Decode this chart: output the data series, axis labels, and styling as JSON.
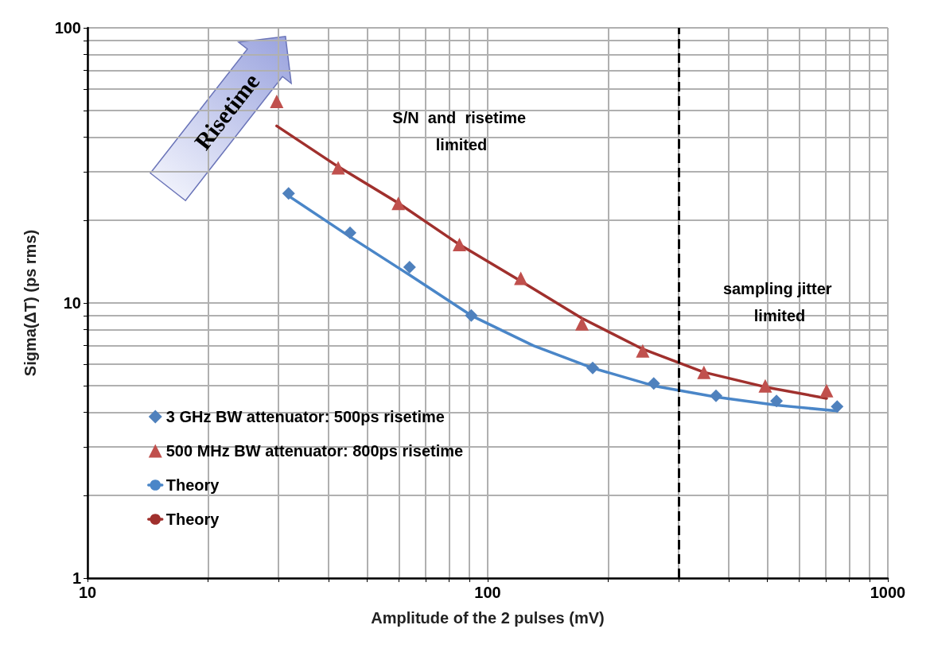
{
  "chart_data": {
    "type": "scatter",
    "xlabel": "Amplitude of the 2 pulses (mV)",
    "ylabel": "Sigma(ΔT) (ps rms)",
    "log": "xy",
    "grid": true,
    "legend": "bottom left",
    "xlim": [
      10,
      1000
    ],
    "ylim": [
      1,
      100
    ],
    "xticks": [
      10,
      {
        "value": 20,
        "label": null
      },
      {
        "value": 30,
        "label": null
      },
      {
        "value": 40,
        "label": null
      },
      {
        "value": 50,
        "label": null
      },
      {
        "value": 60,
        "label": null
      },
      {
        "value": 70,
        "label": null
      },
      {
        "value": 80,
        "label": null
      },
      {
        "value": 90,
        "label": null
      },
      100,
      {
        "value": 200,
        "label": null
      },
      {
        "value": 300,
        "label": null
      },
      {
        "value": 400,
        "label": null
      },
      {
        "value": 500,
        "label": null
      },
      {
        "value": 600,
        "label": null
      },
      {
        "value": 700,
        "label": null
      },
      {
        "value": 800,
        "label": null
      },
      {
        "value": 900,
        "label": null
      },
      1000
    ],
    "yticks": [
      1,
      {
        "value": 2,
        "label": null
      },
      {
        "value": 3,
        "label": null
      },
      {
        "value": 4,
        "label": null
      },
      {
        "value": 5,
        "label": null
      },
      {
        "value": 6,
        "label": null
      },
      {
        "value": 7,
        "label": null
      },
      {
        "value": 8,
        "label": null
      },
      {
        "value": 9,
        "label": null
      },
      10,
      {
        "value": 20,
        "label": null
      },
      {
        "value": 30,
        "label": null
      },
      {
        "value": 40,
        "label": null
      },
      {
        "value": 50,
        "label": null
      },
      {
        "value": 60,
        "label": null
      },
      {
        "value": 70,
        "label": null
      },
      {
        "value": 80,
        "label": null
      },
      {
        "value": 90,
        "label": null
      },
      100
    ],
    "series": [
      {
        "name": "3 GHz BW attenuator: 500ps risetime",
        "marker": "diamond",
        "color": "#4f81bd",
        "x": [
          31.8,
          45.3,
          63.8,
          91,
          183,
          260,
          372,
          527,
          747
        ],
        "values": [
          25,
          18,
          13.5,
          9,
          5.8,
          5.1,
          4.6,
          4.4,
          4.2
        ]
      },
      {
        "name": "500 MHz BW attenuator: 800ps risetime",
        "marker": "triangle",
        "color": "#c0504d",
        "x": [
          29.7,
          42.3,
          59.8,
          85,
          121,
          172,
          244,
          347,
          494,
          703
        ],
        "values": [
          54,
          31,
          23,
          16.3,
          12.3,
          8.4,
          6.7,
          5.6,
          5,
          4.8
        ]
      },
      {
        "name": "Theory",
        "type": "line",
        "marker": "none",
        "line_style": "solid",
        "color": "#4a86c8",
        "x": [
          31.8,
          45,
          64,
          91,
          130,
          183,
          260,
          372,
          527,
          747
        ],
        "values": [
          24.5,
          17.5,
          12.6,
          9,
          7,
          5.8,
          5,
          4.55,
          4.25,
          4.05
        ]
      },
      {
        "name": "Theory",
        "type": "line",
        "marker": "none",
        "line_style": "solid",
        "color": "#a0302d",
        "x": [
          29.7,
          42,
          60,
          85,
          121,
          172,
          244,
          347,
          494,
          703
        ],
        "values": [
          44,
          31.5,
          23,
          16.3,
          12,
          8.8,
          6.8,
          5.6,
          4.95,
          4.5
        ]
      }
    ],
    "ref_lines": [
      {
        "axis": "x",
        "value": 300,
        "label": null,
        "color": "#000000",
        "line_style": "dashed"
      }
    ],
    "annotations": [
      "Risetime",
      "S/N  and  risetime limited",
      "sampling jitter limited"
    ]
  }
}
